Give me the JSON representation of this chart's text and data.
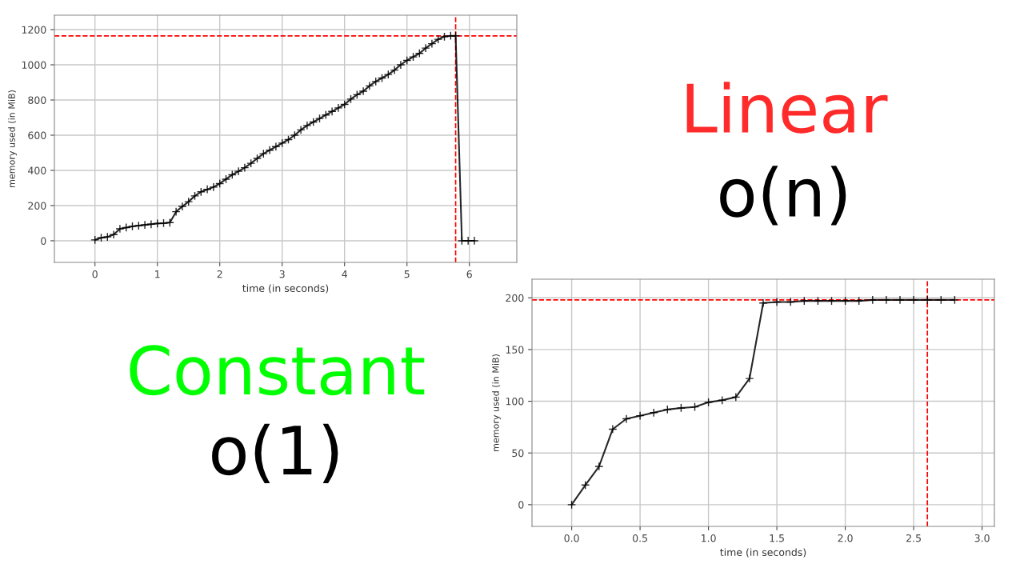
{
  "chart_data": [
    {
      "type": "line",
      "xlabel": "time (in seconds)",
      "ylabel": "memory used (in MiB)",
      "x": [
        0,
        0.1,
        0.2,
        0.3,
        0.4,
        0.5,
        0.6,
        0.7,
        0.8,
        0.9,
        1.0,
        1.1,
        1.2,
        1.3,
        1.4,
        1.5,
        1.6,
        1.7,
        1.8,
        1.9,
        2.0,
        2.1,
        2.2,
        2.3,
        2.4,
        2.5,
        2.6,
        2.7,
        2.8,
        2.9,
        3.0,
        3.1,
        3.2,
        3.3,
        3.4,
        3.5,
        3.6,
        3.7,
        3.8,
        3.9,
        4.0,
        4.1,
        4.2,
        4.3,
        4.4,
        4.5,
        4.6,
        4.7,
        4.8,
        4.9,
        5.0,
        5.1,
        5.2,
        5.3,
        5.4,
        5.5,
        5.6,
        5.7,
        5.78,
        5.88,
        5.98,
        6.08
      ],
      "series": [
        {
          "color": "#000000",
          "values": [
            5,
            17,
            22,
            35,
            68,
            75,
            82,
            86,
            90,
            94,
            98,
            100,
            103,
            165,
            195,
            222,
            255,
            278,
            292,
            305,
            325,
            350,
            375,
            395,
            415,
            440,
            468,
            495,
            515,
            535,
            555,
            575,
            600,
            630,
            655,
            675,
            695,
            715,
            735,
            755,
            775,
            805,
            830,
            850,
            880,
            905,
            925,
            945,
            970,
            1000,
            1025,
            1045,
            1065,
            1095,
            1120,
            1145,
            1160,
            1165,
            1165,
            0,
            0,
            0
          ]
        }
      ],
      "xlim": [
        -0.65,
        6.76
      ],
      "xticks": [
        0,
        1,
        2,
        3,
        4,
        5,
        6
      ],
      "ylim": [
        -123,
        1282
      ],
      "yticks": [
        0,
        200,
        400,
        600,
        800,
        1000,
        1200
      ],
      "grid": true,
      "marker": "cross",
      "line_style": "solid",
      "ref_lines": [
        {
          "axis": "y",
          "value": 1164,
          "color": "#ff0000",
          "line_style": "dashed"
        },
        {
          "axis": "x",
          "value": 5.78,
          "color": "#ff0000",
          "line_style": "dashed"
        }
      ]
    },
    {
      "type": "other",
      "annotations": [
        "Linear",
        "o(n)"
      ],
      "colors": [
        "#ff2a2a",
        "#000000"
      ]
    },
    {
      "type": "other",
      "annotations": [
        "Constant",
        "o(1)"
      ],
      "colors": [
        "#00ff00",
        "#000000"
      ]
    },
    {
      "type": "line",
      "xlabel": "time (in seconds)",
      "ylabel": "memory used (in MiB)",
      "x": [
        0,
        0.1,
        0.2,
        0.3,
        0.4,
        0.5,
        0.6,
        0.7,
        0.8,
        0.9,
        1.0,
        1.1,
        1.2,
        1.3,
        1.4,
        1.5,
        1.6,
        1.7,
        1.8,
        1.9,
        2.0,
        2.1,
        2.2,
        2.3,
        2.4,
        2.5,
        2.6,
        2.7,
        2.8
      ],
      "series": [
        {
          "color": "#000000",
          "values": [
            0,
            19,
            37,
            73,
            83,
            86,
            89,
            92,
            93.5,
            94.5,
            99,
            101,
            104,
            122,
            195,
            196,
            196,
            197,
            197,
            197,
            197,
            197,
            198,
            198,
            198,
            198,
            198,
            198,
            198
          ]
        }
      ],
      "xlim": [
        -0.29,
        3.09
      ],
      "xticks": [
        {
          "value": 0,
          "label": "0.0"
        },
        {
          "value": 0.5,
          "label": "0.5"
        },
        {
          "value": 1,
          "label": "1.0"
        },
        {
          "value": 1.5,
          "label": "1.5"
        },
        {
          "value": 2,
          "label": "2.0"
        },
        {
          "value": 2.5,
          "label": "2.5"
        },
        {
          "value": 3,
          "label": "3.0"
        }
      ],
      "ylim": [
        -21,
        218
      ],
      "yticks": [
        0,
        50,
        100,
        150,
        200
      ],
      "grid": true,
      "marker": "cross",
      "line_style": "solid",
      "ref_lines": [
        {
          "axis": "y",
          "value": 198,
          "color": "#ff0000",
          "line_style": "dashed"
        },
        {
          "axis": "x",
          "value": 2.6,
          "color": "#ff0000",
          "line_style": "dashed"
        }
      ]
    }
  ]
}
